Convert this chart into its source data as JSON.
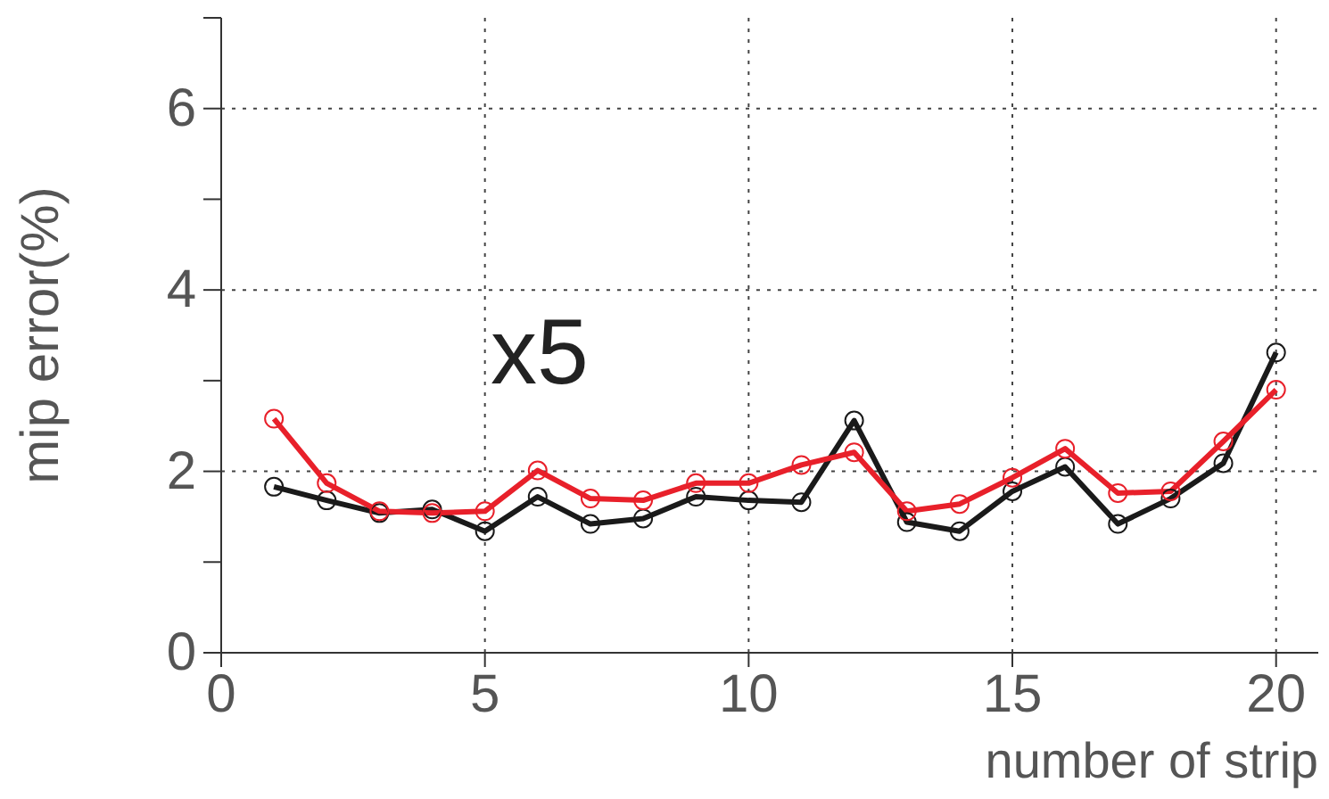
{
  "chart_data": {
    "type": "line",
    "xlabel": "number of strip",
    "ylabel": "mip error(%)",
    "annotations": [
      "x5"
    ],
    "x": [
      1,
      2,
      3,
      4,
      5,
      6,
      7,
      8,
      9,
      10,
      11,
      12,
      13,
      14,
      15,
      16,
      17,
      18,
      19,
      20
    ],
    "series": [
      {
        "color": "#1a1a1a",
        "values": [
          1.83,
          1.68,
          1.54,
          1.58,
          1.34,
          1.72,
          1.42,
          1.48,
          1.72,
          1.68,
          1.66,
          2.56,
          1.44,
          1.34,
          1.78,
          2.05,
          1.42,
          1.7,
          2.09,
          3.31
        ]
      },
      {
        "color": "#e8202a",
        "values": [
          2.58,
          1.87,
          1.56,
          1.54,
          1.56,
          2.01,
          1.7,
          1.68,
          1.87,
          1.87,
          2.07,
          2.21,
          1.56,
          1.64,
          1.93,
          2.25,
          1.76,
          1.78,
          2.33,
          2.9
        ]
      }
    ],
    "xlim": [
      0,
      20.8
    ],
    "xticks": [
      0,
      5,
      10,
      15,
      20
    ],
    "ylim": [
      0,
      7
    ],
    "yticks": [
      0,
      {
        "value": 1,
        "label": null
      },
      2,
      {
        "value": 3,
        "label": null
      },
      4,
      {
        "value": 5,
        "label": null
      },
      6,
      {
        "value": 7,
        "label": null
      }
    ],
    "grid": true,
    "legend": false,
    "marker": "circle",
    "line_style": "solid"
  }
}
